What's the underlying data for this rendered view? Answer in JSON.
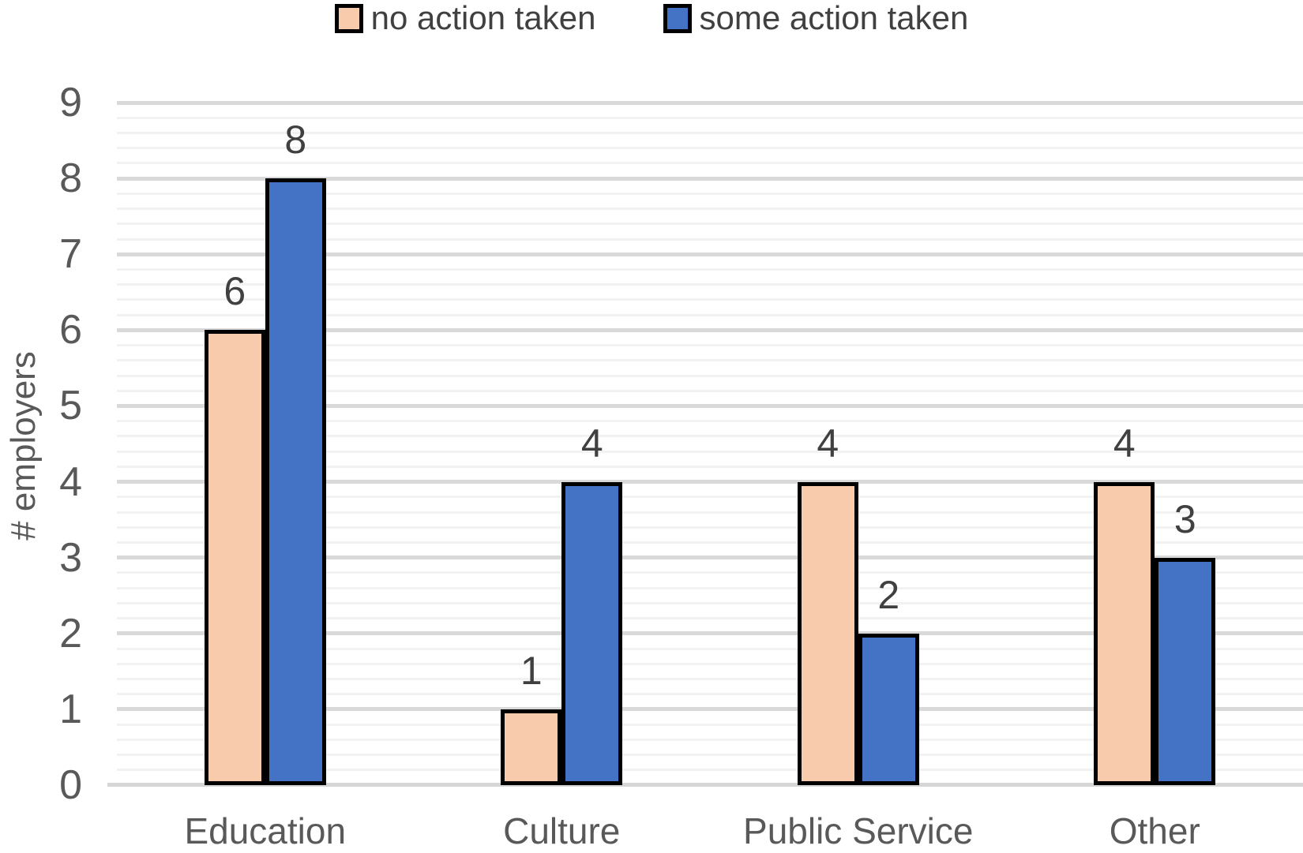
{
  "chart_data": {
    "type": "bar",
    "title": "",
    "xlabel": "",
    "ylabel": "# employers",
    "categories": [
      "Education",
      "Culture",
      "Public Service",
      "Other"
    ],
    "series": [
      {
        "name": "no action taken",
        "color": "#F8CBAD",
        "values": [
          6,
          1,
          4,
          4
        ]
      },
      {
        "name": "some action taken",
        "color": "#4472C4",
        "values": [
          8,
          4,
          2,
          3
        ]
      }
    ],
    "data_labels": true,
    "ylim": [
      0,
      9
    ],
    "y_ticks": [
      0,
      1,
      2,
      3,
      4,
      5,
      6,
      7,
      8,
      9
    ],
    "y_major_step": 1,
    "y_minor_step": 0.2,
    "grid": "horizontal, major and minor, on",
    "legend_position": "top-center",
    "colors": {
      "bar_border": "#000000",
      "major_grid": "#d9d9d9",
      "minor_grid": "#f2f2f2",
      "axis_line": "#d6d6d6",
      "tick_text": "#595959",
      "label_text": "#404040"
    }
  }
}
